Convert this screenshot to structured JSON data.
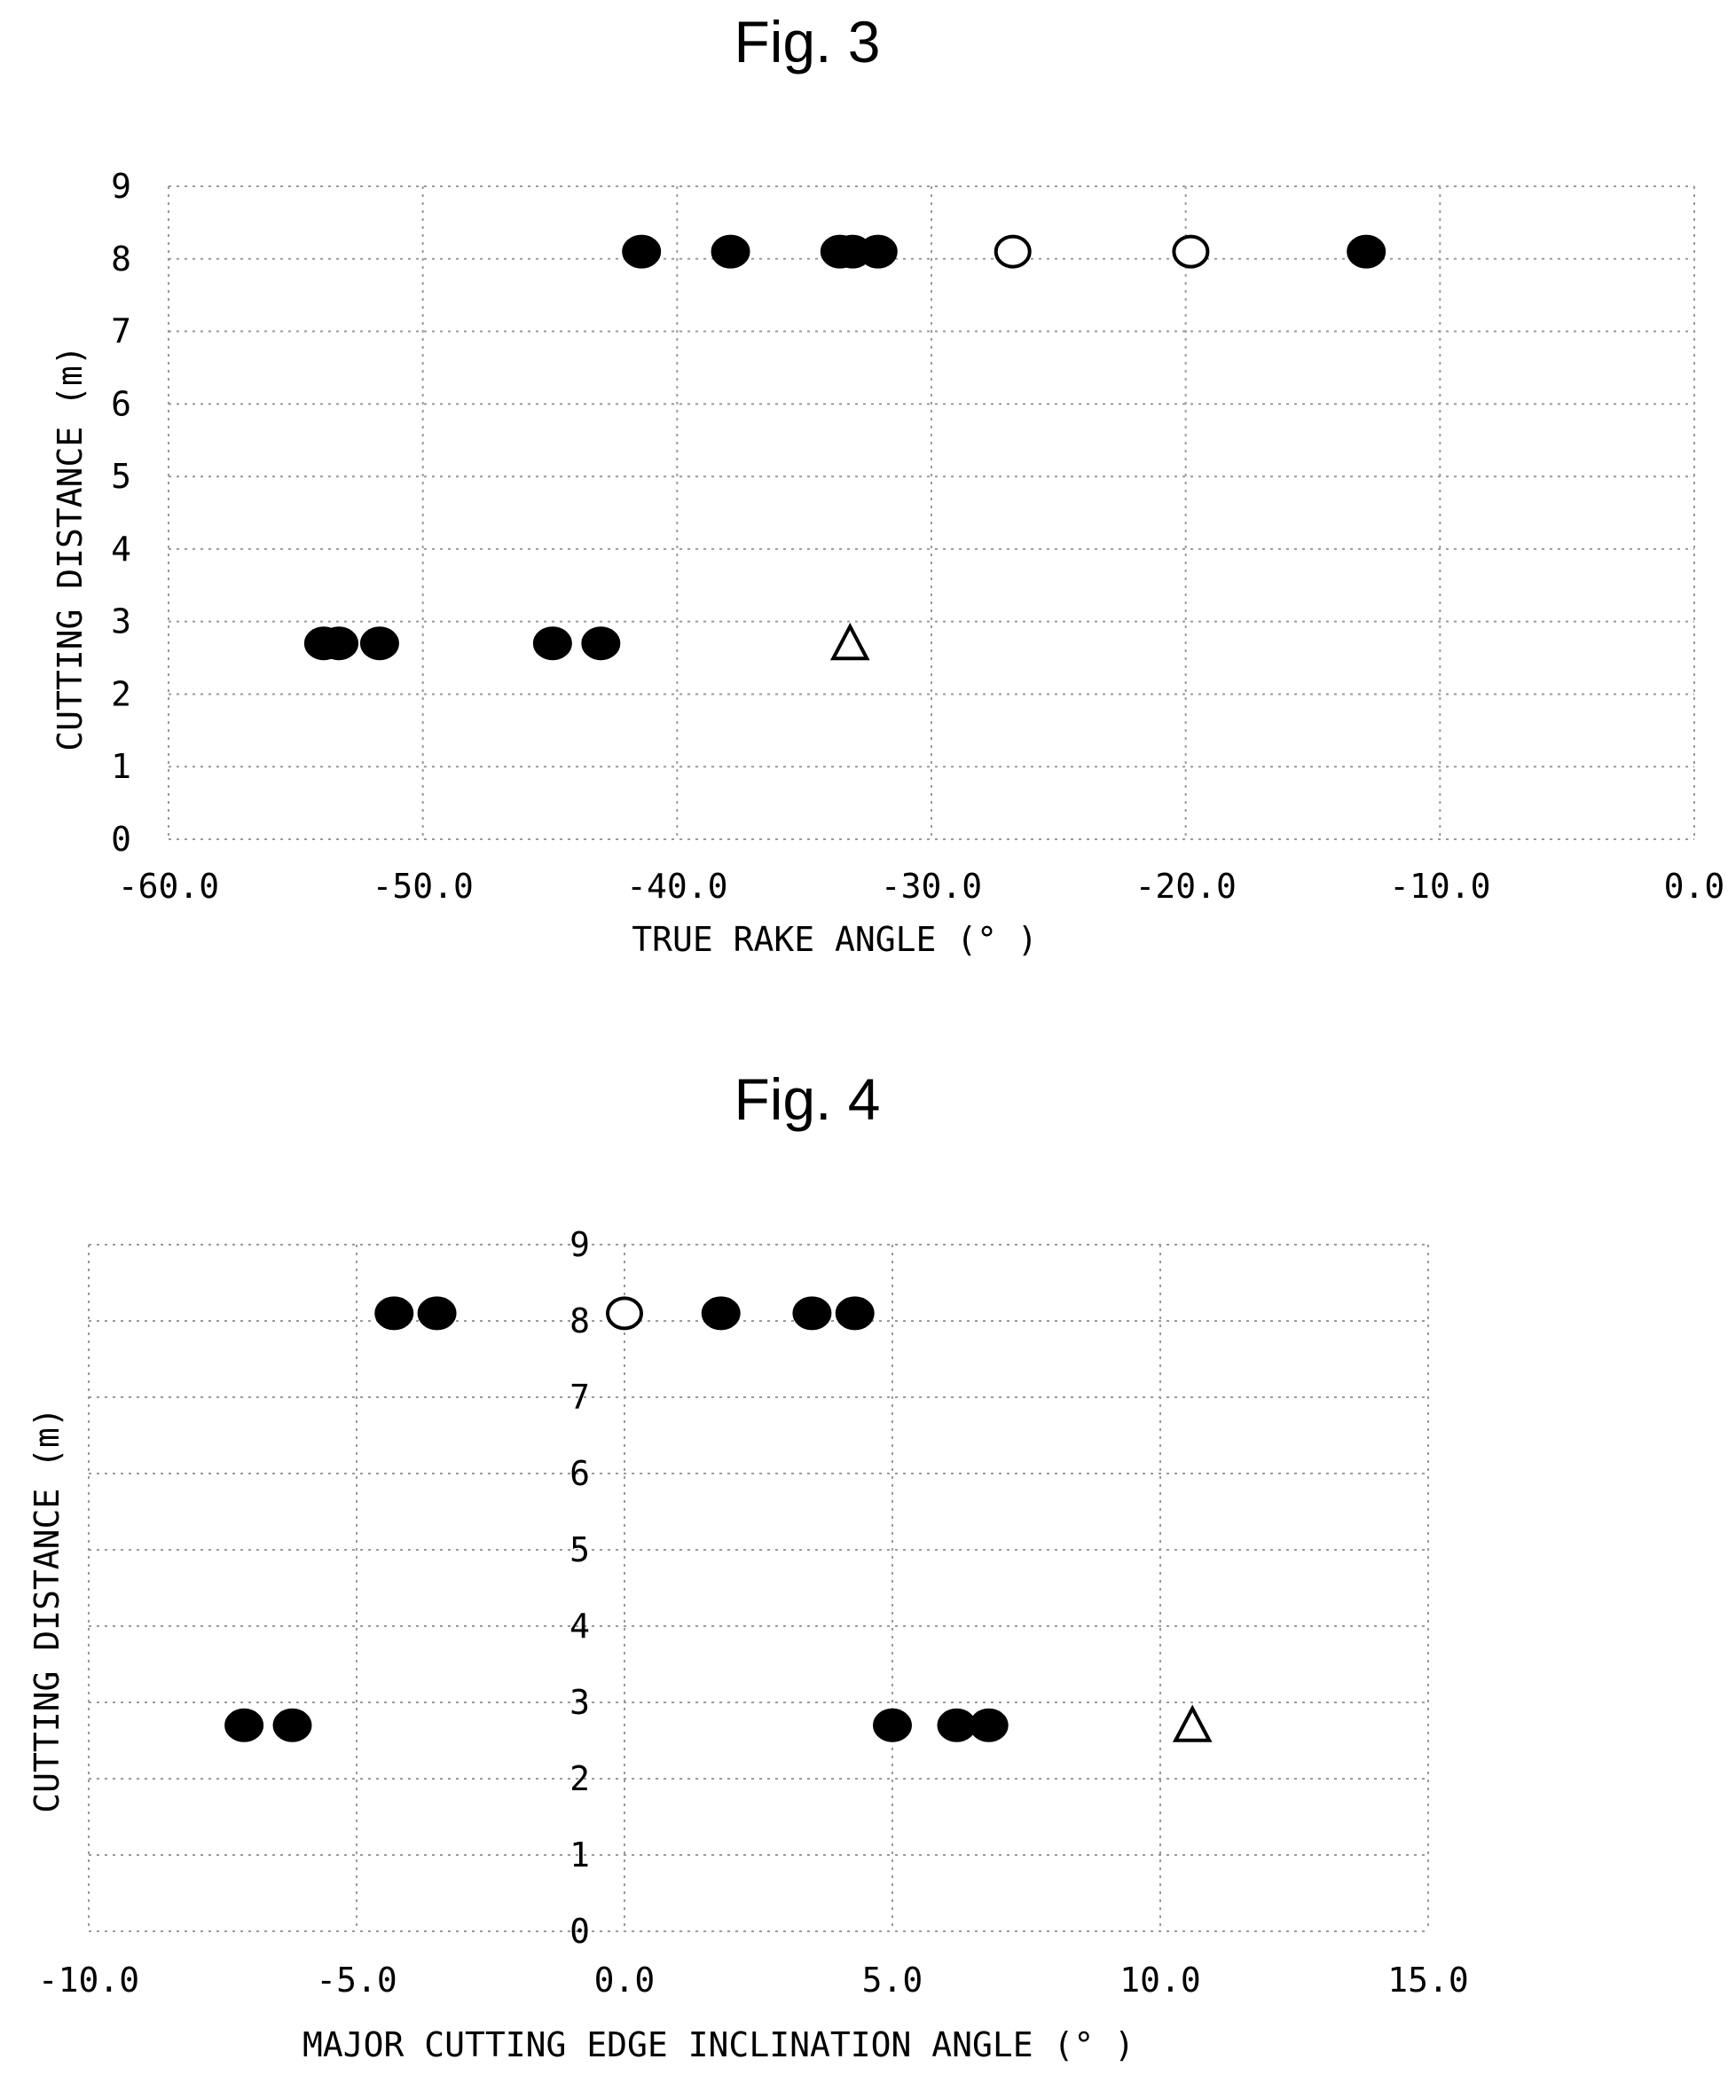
{
  "chart_data": [
    {
      "type": "scatter",
      "title": "Fig. 3",
      "xlabel": "TRUE RAKE ANGLE (° )",
      "ylabel": "CUTTING DISTANCE (m)",
      "xlim": [
        -60,
        0
      ],
      "ylim": [
        0,
        9
      ],
      "x_ticks": [
        "-60.0",
        "-50.0",
        "-40.0",
        "-30.0",
        "-20.0",
        "-10.0",
        "0.0"
      ],
      "y_ticks": [
        "0",
        "1",
        "2",
        "3",
        "4",
        "5",
        "6",
        "7",
        "8",
        "9"
      ],
      "grid": true,
      "series": [
        {
          "marker": "filled-circle",
          "points": [
            {
              "x": -53.9,
              "y": 2.7
            },
            {
              "x": -53.3,
              "y": 2.7
            },
            {
              "x": -51.7,
              "y": 2.7
            },
            {
              "x": -44.9,
              "y": 2.7
            },
            {
              "x": -43.0,
              "y": 2.7
            },
            {
              "x": -41.4,
              "y": 8.1
            },
            {
              "x": -37.9,
              "y": 8.1
            },
            {
              "x": -33.6,
              "y": 8.1
            },
            {
              "x": -33.1,
              "y": 8.1
            },
            {
              "x": -32.1,
              "y": 8.1
            },
            {
              "x": -12.9,
              "y": 8.1
            }
          ]
        },
        {
          "marker": "open-circle",
          "points": [
            {
              "x": -26.8,
              "y": 8.1
            },
            {
              "x": -19.8,
              "y": 8.1
            }
          ]
        },
        {
          "marker": "open-triangle",
          "points": [
            {
              "x": -33.2,
              "y": 2.7
            }
          ]
        }
      ]
    },
    {
      "type": "scatter",
      "title": "Fig. 4",
      "xlabel": "MAJOR CUTTING EDGE INCLINATION ANGLE (° )",
      "ylabel": "CUTTING DISTANCE (m)",
      "xlim": [
        -10,
        15
      ],
      "ylim": [
        0,
        9
      ],
      "x_ticks": [
        "-10.0",
        "-5.0",
        "0.0",
        "5.0",
        "10.0",
        "15.0"
      ],
      "y_ticks": [
        "0",
        "1",
        "2",
        "3",
        "4",
        "5",
        "6",
        "7",
        "8",
        "9"
      ],
      "grid": true,
      "series": [
        {
          "marker": "filled-circle",
          "points": [
            {
              "x": -7.1,
              "y": 2.7
            },
            {
              "x": -6.2,
              "y": 2.7
            },
            {
              "x": -4.3,
              "y": 8.1
            },
            {
              "x": -3.5,
              "y": 8.1
            },
            {
              "x": 1.8,
              "y": 8.1
            },
            {
              "x": 3.5,
              "y": 8.1
            },
            {
              "x": 4.3,
              "y": 8.1
            },
            {
              "x": 5.0,
              "y": 2.7
            },
            {
              "x": 6.2,
              "y": 2.7
            },
            {
              "x": 6.8,
              "y": 2.7
            }
          ]
        },
        {
          "marker": "open-circle",
          "points": [
            {
              "x": 0.0,
              "y": 8.1
            }
          ]
        },
        {
          "marker": "open-triangle",
          "points": [
            {
              "x": 10.6,
              "y": 2.7
            }
          ]
        }
      ]
    }
  ]
}
